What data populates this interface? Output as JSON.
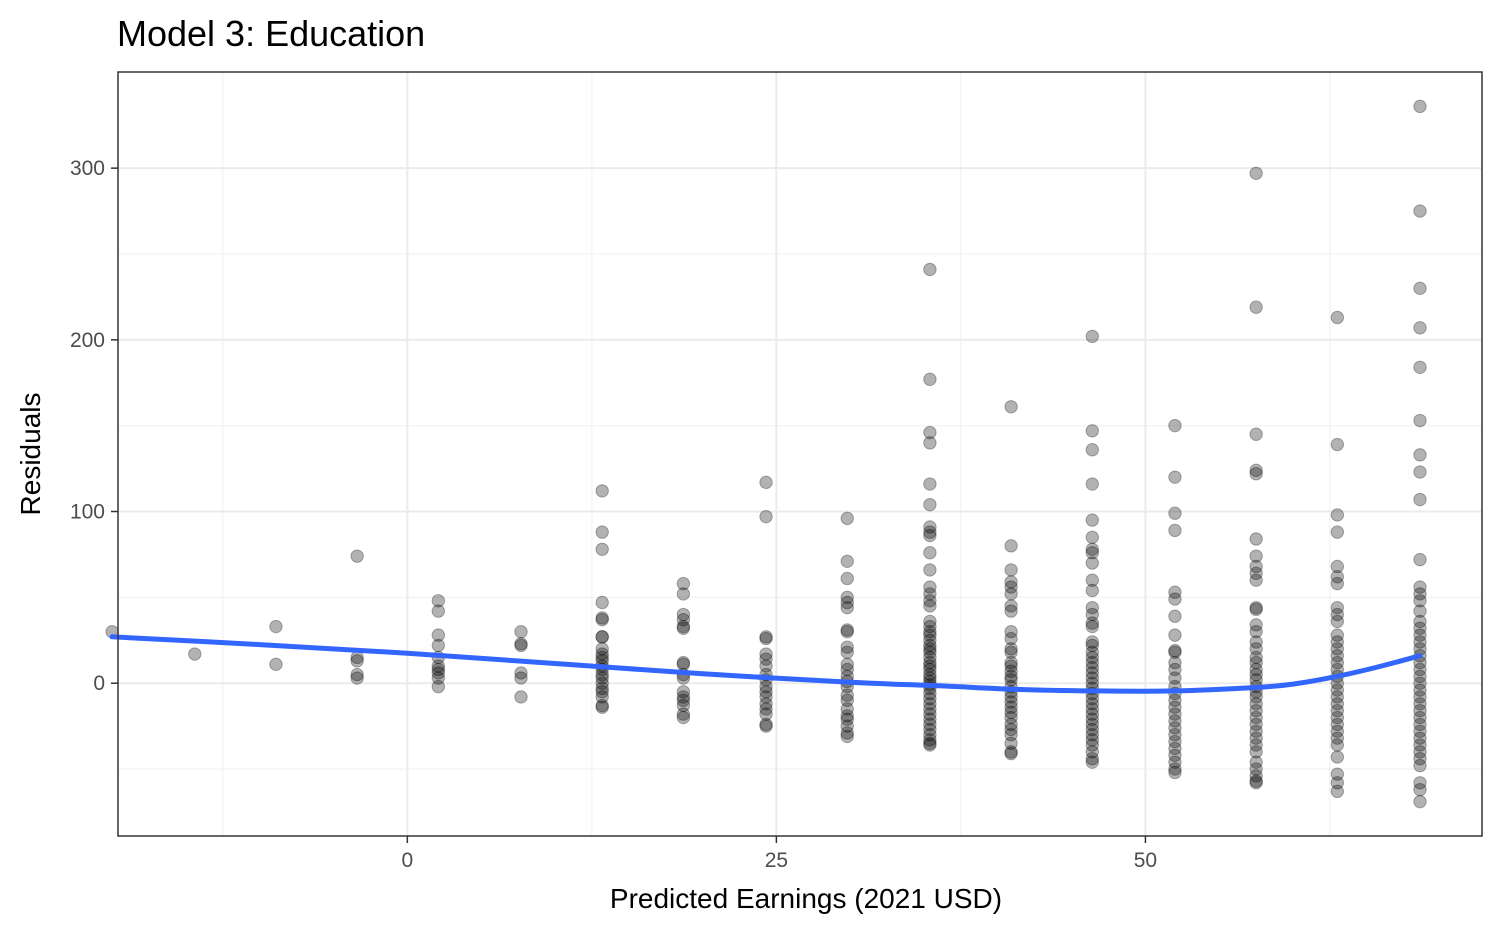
{
  "chart_data": {
    "type": "scatter",
    "title": "Model 3: Education",
    "xlabel": "Predicted Earnings (2021 USD)",
    "ylabel": "Residuals",
    "xlim": [
      -19.6,
      72.8
    ],
    "ylim": [
      -89,
      356
    ],
    "x_major_ticks": [
      0,
      25,
      50
    ],
    "x_tick_labels": [
      "0",
      "25",
      "50"
    ],
    "x_minor_ticks": [
      -12.5,
      12.5,
      37.5,
      62.5
    ],
    "y_major_ticks": [
      0,
      100,
      200,
      300
    ],
    "y_tick_labels": [
      "0",
      "100",
      "200",
      "300"
    ],
    "y_minor_ticks": [
      -50,
      50,
      150,
      250
    ],
    "grid": true,
    "legend": "none",
    "point_color": "#000000",
    "point_alpha": 0.3,
    "smooth_color": "#3366ff",
    "series": [
      {
        "type": "scatter",
        "groups": [
          {
            "x": -20.0,
            "y": [
              30
            ]
          },
          {
            "x": -14.4,
            "y": [
              17
            ]
          },
          {
            "x": -8.9,
            "y": [
              33,
              11
            ]
          },
          {
            "x": -3.4,
            "y": [
              74,
              15,
              13,
              5,
              3
            ]
          },
          {
            "x": 2.1,
            "y": [
              48,
              42,
              28,
              22,
              15,
              10,
              8,
              6,
              3,
              -2
            ]
          },
          {
            "x": 7.7,
            "y": [
              30,
              23,
              22,
              6,
              3,
              -8
            ]
          },
          {
            "x": 13.2,
            "y": [
              112,
              88,
              78,
              47,
              38,
              37,
              27,
              27,
              20,
              17,
              15,
              13,
              10,
              8,
              5,
              3,
              0,
              -3,
              -5,
              -8,
              -13,
              -14
            ]
          },
          {
            "x": 18.7,
            "y": [
              58,
              52,
              40,
              37,
              33,
              32,
              12,
              11,
              5,
              3,
              -5,
              -8,
              -10,
              -13,
              -18,
              -20
            ]
          },
          {
            "x": 24.3,
            "y": [
              117,
              97,
              27,
              26,
              17,
              14,
              10,
              5,
              2,
              -2,
              -5,
              -8,
              -12,
              -15,
              -18,
              -24,
              -25
            ]
          },
          {
            "x": 29.8,
            "y": [
              96,
              71,
              61,
              50,
              47,
              44,
              31,
              30,
              21,
              18,
              11,
              8,
              4,
              1,
              -2,
              -7,
              -10,
              -15,
              -19,
              -21,
              -25,
              -29,
              -31
            ]
          },
          {
            "x": 35.4,
            "y": [
              241,
              177,
              146,
              140,
              116,
              104,
              91,
              88,
              86,
              76,
              66,
              56,
              52,
              48,
              45,
              36,
              33,
              30,
              28,
              25,
              22,
              20,
              18,
              15,
              12,
              10,
              8,
              5,
              3,
              1,
              -1,
              -3,
              -6,
              -9,
              -12,
              -15,
              -18,
              -21,
              -24,
              -27,
              -30,
              -33,
              -35,
              -36
            ]
          },
          {
            "x": 40.9,
            "y": [
              161,
              80,
              66,
              59,
              56,
              52,
              45,
              42,
              30,
              26,
              20,
              18,
              12,
              10,
              7,
              4,
              2,
              -2,
              -5,
              -8,
              -11,
              -14,
              -17,
              -20,
              -24,
              -27,
              -30,
              -35,
              -40,
              -41
            ]
          },
          {
            "x": 46.4,
            "y": [
              202,
              147,
              136,
              116,
              95,
              85,
              78,
              76,
              70,
              60,
              54,
              44,
              40,
              35,
              33,
              24,
              22,
              18,
              15,
              12,
              9,
              6,
              3,
              0,
              -3,
              -6,
              -9,
              -12,
              -15,
              -18,
              -21,
              -24,
              -27,
              -30,
              -33,
              -36,
              -40,
              -44,
              -46
            ]
          },
          {
            "x": 52.0,
            "y": [
              150,
              120,
              99,
              89,
              53,
              49,
              39,
              28,
              19,
              18,
              12,
              8,
              3,
              -2,
              -6,
              -10,
              -14,
              -18,
              -22,
              -26,
              -30,
              -34,
              -38,
              -42,
              -46,
              -50,
              -52
            ]
          },
          {
            "x": 57.5,
            "y": [
              297,
              219,
              145,
              124,
              122,
              84,
              74,
              68,
              64,
              60,
              44,
              43,
              34,
              30,
              24,
              20,
              15,
              12,
              8,
              5,
              2,
              -2,
              -5,
              -8,
              -12,
              -16,
              -20,
              -24,
              -28,
              -32,
              -36,
              -40,
              -46,
              -50,
              -54,
              -57,
              -58
            ]
          },
          {
            "x": 63.0,
            "y": [
              213,
              139,
              98,
              88,
              68,
              62,
              58,
              44,
              40,
              36,
              28,
              24,
              20,
              16,
              12,
              8,
              4,
              0,
              -4,
              -8,
              -12,
              -16,
              -20,
              -24,
              -28,
              -32,
              -36,
              -43,
              -53,
              -58,
              -63
            ]
          },
          {
            "x": 68.6,
            "y": [
              336,
              275,
              230,
              207,
              184,
              153,
              133,
              123,
              107,
              72,
              56,
              52,
              48,
              42,
              36,
              32,
              28,
              24,
              20,
              16,
              12,
              8,
              4,
              0,
              -4,
              -8,
              -12,
              -16,
              -20,
              -24,
              -28,
              -32,
              -36,
              -40,
              -44,
              -48,
              -58,
              -62,
              -69
            ]
          }
        ]
      },
      {
        "type": "line",
        "x": [
          -20.0,
          -10.0,
          0.0,
          10.0,
          20.0,
          30.0,
          36.0,
          41.0,
          46.5,
          52.0,
          57.5,
          60.0,
          63.0,
          66.0,
          68.6
        ],
        "y": [
          27,
          22.5,
          17.5,
          11.5,
          5.5,
          0.5,
          -1.5,
          -3.5,
          -4.5,
          -4.5,
          -2.5,
          -0.5,
          4,
          10,
          16
        ]
      }
    ]
  }
}
